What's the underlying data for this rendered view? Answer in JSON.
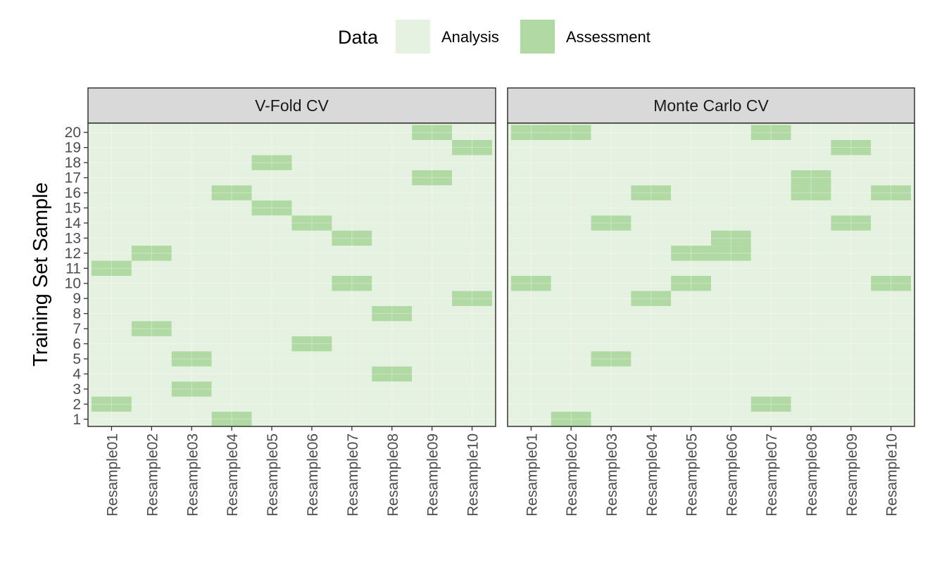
{
  "legend": {
    "title": "Data",
    "placement": "top",
    "items": [
      {
        "label": "Analysis",
        "color": "#e6f2e1"
      },
      {
        "label": "Assessment",
        "color": "#b0d9a3"
      }
    ]
  },
  "colors": {
    "analysis": "#e6f2e1",
    "assessment": "#b0d9a3",
    "strip_fill": "#d9d9d9",
    "panel_border": "#333333",
    "axis_text": "#4d4d4d"
  },
  "chart_data": {
    "type": "heatmap",
    "ylabel": "Training Set Sample",
    "xlabel": "",
    "grid": true,
    "categories": [
      "Resample01",
      "Resample02",
      "Resample03",
      "Resample04",
      "Resample05",
      "Resample06",
      "Resample07",
      "Resample08",
      "Resample09",
      "Resample10"
    ],
    "y_values": [
      1,
      2,
      3,
      4,
      5,
      6,
      7,
      8,
      9,
      10,
      11,
      12,
      13,
      14,
      15,
      16,
      17,
      18,
      19,
      20
    ],
    "panels": [
      {
        "title": "V-Fold CV",
        "assessment": {
          "Resample01": [
            2,
            11
          ],
          "Resample02": [
            7,
            12
          ],
          "Resample03": [
            3,
            5
          ],
          "Resample04": [
            1,
            16
          ],
          "Resample05": [
            15,
            18
          ],
          "Resample06": [
            6,
            14
          ],
          "Resample07": [
            10,
            13
          ],
          "Resample08": [
            4,
            8
          ],
          "Resample09": [
            17,
            20
          ],
          "Resample10": [
            9,
            19
          ]
        }
      },
      {
        "title": "Monte Carlo CV",
        "assessment": {
          "Resample01": [
            10,
            20
          ],
          "Resample02": [
            1,
            20
          ],
          "Resample03": [
            5,
            14
          ],
          "Resample04": [
            9,
            16
          ],
          "Resample05": [
            10,
            12
          ],
          "Resample06": [
            12,
            13
          ],
          "Resample07": [
            2,
            20
          ],
          "Resample08": [
            16,
            17
          ],
          "Resample09": [
            14,
            19
          ],
          "Resample10": [
            10,
            16
          ]
        }
      }
    ]
  }
}
